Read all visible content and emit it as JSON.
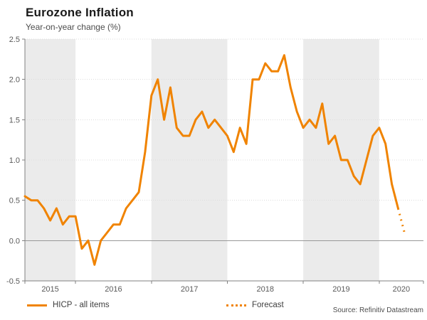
{
  "chart_data": {
    "type": "line",
    "title": "Eurozone Inflation",
    "subtitle": "Year-on-year change (%)",
    "source": "Source: Refinitiv Datastream",
    "ylim": [
      -0.5,
      2.5
    ],
    "ytick_labels": [
      "2.5",
      "2.0",
      "1.5",
      "1.0",
      "0.5",
      "0.0",
      "-0.5"
    ],
    "x_tick_labels": [
      "2015",
      "2016",
      "2017",
      "2018",
      "2019",
      "2020"
    ],
    "shaded_year_bands": [
      "2015",
      "2017",
      "2019"
    ],
    "grid": "dotted horizontal lines, solid line at zero",
    "legend_position": "bottom",
    "first_month": "2015-05",
    "series": [
      {
        "name": "HICP - all items",
        "line_style": "solid",
        "color": "#F08300",
        "values": [
          0.55,
          0.5,
          0.5,
          0.4,
          0.25,
          0.4,
          0.2,
          0.3,
          0.3,
          -0.1,
          0.0,
          -0.3,
          0.0,
          0.1,
          0.2,
          0.2,
          0.4,
          0.5,
          0.6,
          1.1,
          1.8,
          2.0,
          1.5,
          1.9,
          1.4,
          1.3,
          1.3,
          1.5,
          1.6,
          1.4,
          1.5,
          1.4,
          1.3,
          1.1,
          1.4,
          1.2,
          2.0,
          2.0,
          2.2,
          2.1,
          2.1,
          2.3,
          1.9,
          1.6,
          1.4,
          1.5,
          1.4,
          1.7,
          1.2,
          1.3,
          1.0,
          1.0,
          0.8,
          0.7,
          1.0,
          1.3,
          1.4,
          1.2,
          0.7,
          0.4
        ]
      },
      {
        "name": "Forecast",
        "line_style": "dotted",
        "color": "#F08300",
        "values": [
          0.1
        ]
      }
    ],
    "colors": {
      "accent_orange": "#F08300",
      "band_gray": "#EBEBEB",
      "grid_gray": "#DCDCDC",
      "zero_line_gray": "#999999",
      "axis_gray": "#808080",
      "tick_label_gray": "#595959"
    }
  }
}
